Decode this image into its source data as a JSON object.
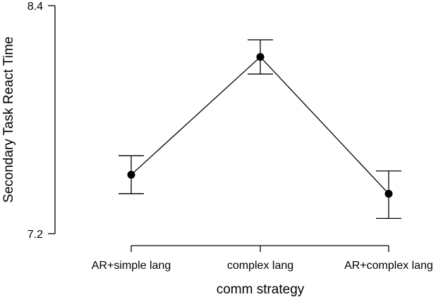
{
  "chart_data": {
    "type": "line",
    "xlabel": "comm strategy",
    "ylabel": "Secondary Task React Time",
    "categories": [
      "AR+simple lang",
      "complex lang",
      "AR+complex lang"
    ],
    "yticks": [
      "7.2",
      "8.4"
    ],
    "ylim": [
      7.2,
      8.4
    ],
    "series": [
      {
        "values": [
          7.51,
          8.13,
          7.41
        ],
        "error_low": [
          7.41,
          8.04,
          7.28
        ],
        "error_high": [
          7.61,
          8.22,
          7.53
        ]
      }
    ],
    "grid": false,
    "legend": "none",
    "colors": {
      "line": "#000000",
      "marker": "#000000"
    }
  }
}
